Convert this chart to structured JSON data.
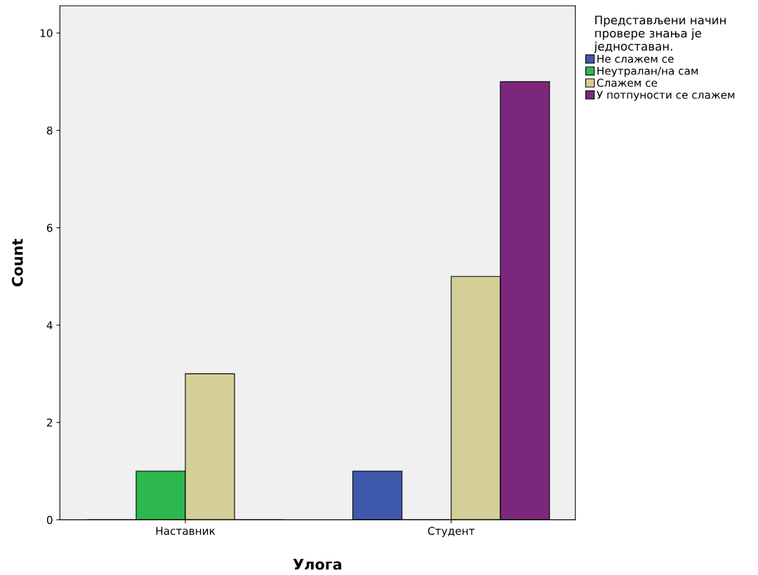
{
  "chart_data": {
    "type": "bar",
    "xlabel": "Улога",
    "ylabel": "Count",
    "categories": [
      "Наставник",
      "Студент"
    ],
    "legend_title": "Представљени начин\nпровере знања је\nједноставан.",
    "series": [
      {
        "name": "Не слажем се",
        "color": "#3e58ac",
        "values": [
          0,
          1
        ]
      },
      {
        "name": "Неутралан/на сам",
        "color": "#2db84d",
        "values": [
          1,
          0
        ]
      },
      {
        "name": "Слажем се",
        "color": "#d4cf98",
        "values": [
          3,
          5
        ]
      },
      {
        "name": "У потпуности се слажем",
        "color": "#7b287c",
        "values": [
          0,
          9
        ]
      }
    ],
    "ylim": [
      0,
      10.56
    ],
    "yticks": [
      0,
      2,
      4,
      6,
      8,
      10
    ],
    "grid": false,
    "legend": "top right"
  }
}
